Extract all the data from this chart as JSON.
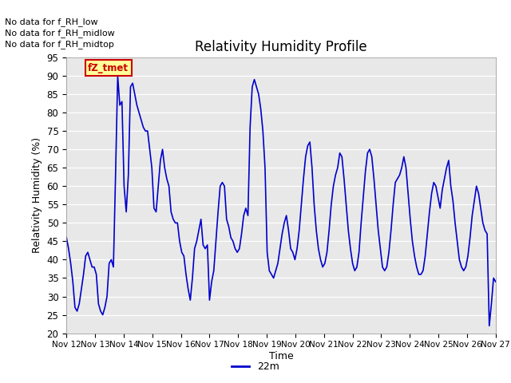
{
  "title": "Relativity Humidity Profile",
  "ylabel": "Relativity Humidity (%)",
  "xlabel": "Time",
  "ylim": [
    20,
    95
  ],
  "yticks": [
    20,
    25,
    30,
    35,
    40,
    45,
    50,
    55,
    60,
    65,
    70,
    75,
    80,
    85,
    90,
    95
  ],
  "line_color": "#0000cc",
  "line_width": 1.2,
  "legend_label": "22m",
  "no_data_texts": [
    "No data for f_RH_low",
    "No data for f_RH_midlow",
    "No data for f_RH_midtop"
  ],
  "tz_tmet_label": "fZ_tmet",
  "x_tick_labels": [
    "Nov 12",
    "Nov 13",
    "Nov 14",
    "Nov 15",
    "Nov 16",
    "Nov 17",
    "Nov 18",
    "Nov 19",
    "Nov 20",
    "Nov 21",
    "Nov 22",
    "Nov 23",
    "Nov 24",
    "Nov 25",
    "Nov 26",
    "Nov 27"
  ],
  "background_color": "#e8e8e8",
  "rh_values": [
    46,
    43,
    39,
    34,
    27,
    26,
    28,
    32,
    36,
    41,
    42,
    40,
    38,
    38,
    36,
    28,
    26,
    25,
    27,
    30,
    39,
    40,
    38,
    63,
    90,
    82,
    83,
    60,
    53,
    63,
    87,
    88,
    85,
    82,
    80,
    78,
    76,
    75,
    75,
    70,
    65,
    54,
    53,
    60,
    67,
    70,
    65,
    62,
    60,
    53,
    51,
    50,
    50,
    45,
    42,
    41,
    36,
    32,
    29,
    35,
    43,
    45,
    48,
    51,
    44,
    43,
    44,
    29,
    34,
    37,
    45,
    53,
    60,
    61,
    60,
    51,
    49,
    46,
    45,
    43,
    42,
    43,
    47,
    52,
    54,
    52,
    76,
    87,
    89,
    87,
    85,
    81,
    75,
    65,
    42,
    37,
    36,
    35,
    37,
    39,
    43,
    47,
    50,
    52,
    48,
    43,
    42,
    40,
    43,
    48,
    55,
    62,
    68,
    71,
    72,
    65,
    55,
    48,
    43,
    40,
    38,
    39,
    42,
    48,
    55,
    60,
    63,
    65,
    69,
    68,
    62,
    55,
    48,
    43,
    39,
    37,
    38,
    42,
    50,
    57,
    64,
    69,
    70,
    68,
    62,
    55,
    48,
    43,
    38,
    37,
    38,
    42,
    48,
    55,
    61,
    62,
    63,
    65,
    68,
    65,
    58,
    51,
    45,
    41,
    38,
    36,
    36,
    37,
    41,
    47,
    53,
    58,
    61,
    60,
    57,
    54,
    59,
    62,
    65,
    67,
    60,
    56,
    50,
    45,
    40,
    38,
    37,
    38,
    41,
    46,
    52,
    56,
    60,
    58,
    54,
    50,
    48,
    47,
    22,
    28,
    35,
    34
  ]
}
